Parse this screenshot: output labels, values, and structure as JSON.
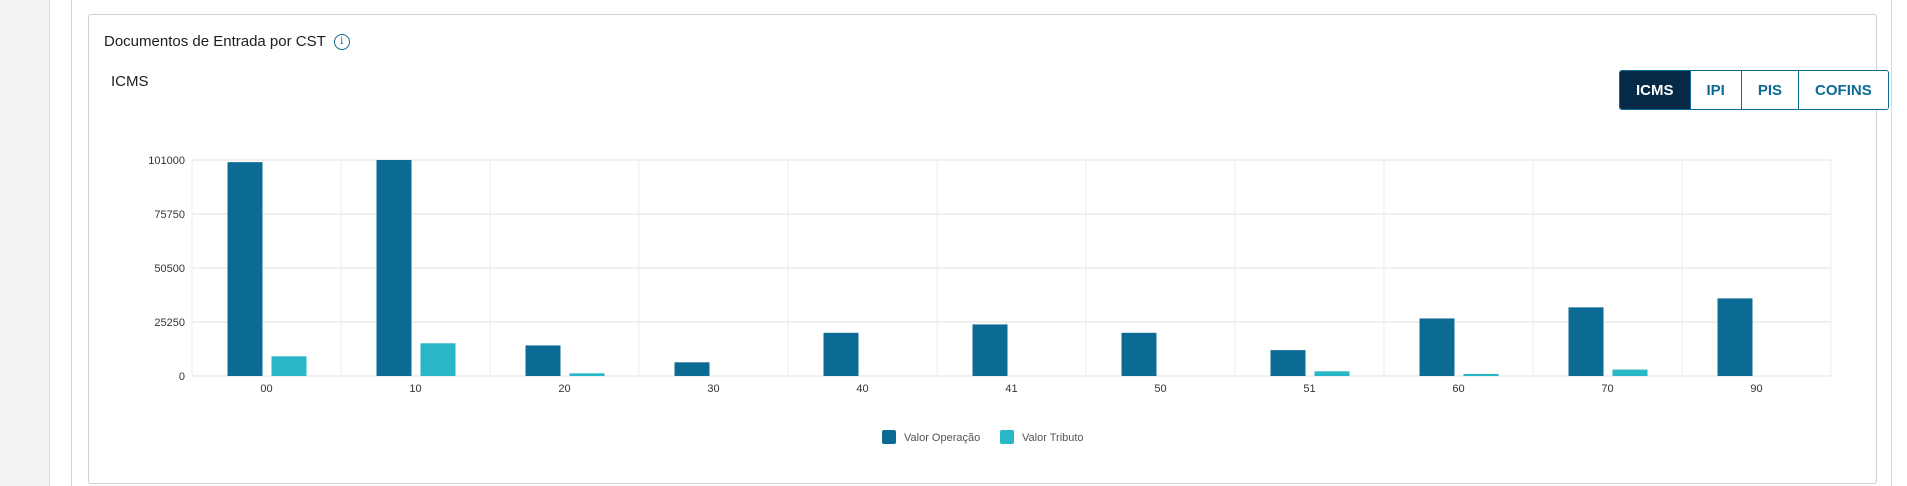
{
  "card": {
    "title": "Documentos de Entrada por CST",
    "info_icon": "info-icon",
    "subtitle": "ICMS"
  },
  "tax_buttons": [
    {
      "label": "ICMS",
      "active": true
    },
    {
      "label": "IPI",
      "active": false
    },
    {
      "label": "PIS",
      "active": false
    },
    {
      "label": "COFINS",
      "active": false
    }
  ],
  "colors": {
    "valor_operacao": "#0c6b95",
    "valor_tributo": "#29b6c6",
    "active_button": "#062a45"
  },
  "chart_data": {
    "type": "bar",
    "categories": [
      "00",
      "10",
      "20",
      "30",
      "40",
      "41",
      "50",
      "51",
      "60",
      "70",
      "90"
    ],
    "series": [
      {
        "name": "Valor Operação",
        "values": [
          100000,
          101000,
          14300,
          6400,
          20200,
          24100,
          20200,
          12100,
          26900,
          32100,
          36300
        ]
      },
      {
        "name": "Valor Tributo",
        "values": [
          9200,
          15300,
          1250,
          0,
          0,
          0,
          0,
          2200,
          950,
          3000,
          0
        ]
      }
    ],
    "yticks": [
      "0",
      "25250",
      "50500",
      "75750",
      "101000"
    ],
    "ylim": [
      0,
      101000
    ],
    "grid": true,
    "legend_position": "bottom"
  }
}
